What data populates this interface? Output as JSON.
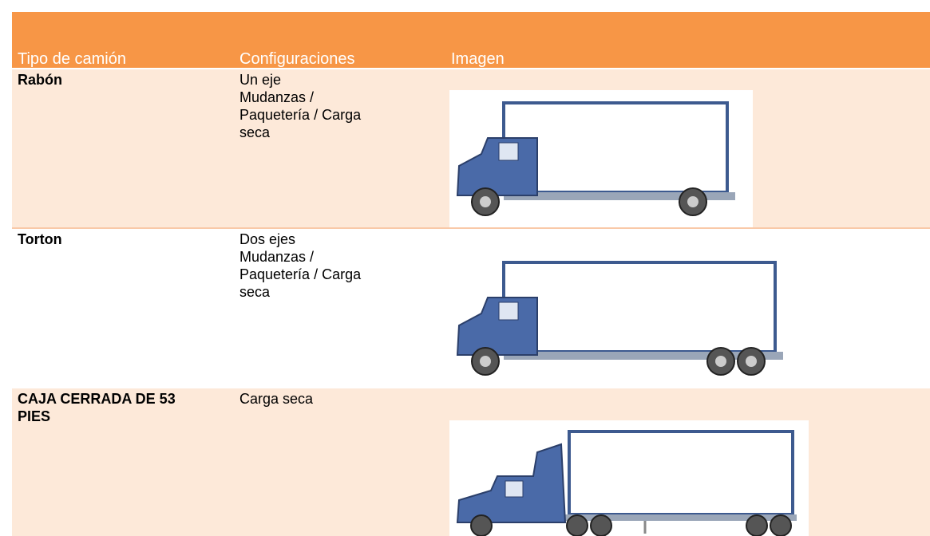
{
  "table": {
    "header": [
      "Tipo de camión",
      "Configuraciones",
      "Imagen"
    ],
    "rows": [
      {
        "type": "Rabón",
        "config": [
          "Un eje",
          "Mudanzas /",
          "Paquetería / Carga",
          "seca"
        ]
      },
      {
        "type": "Torton",
        "config": [
          "Dos ejes",
          "Mudanzas /",
          "Paquetería / Carga",
          "seca"
        ]
      },
      {
        "type": "CAJA CERRADA DE 53 PIES",
        "config": [
          "Carga seca"
        ]
      }
    ]
  }
}
